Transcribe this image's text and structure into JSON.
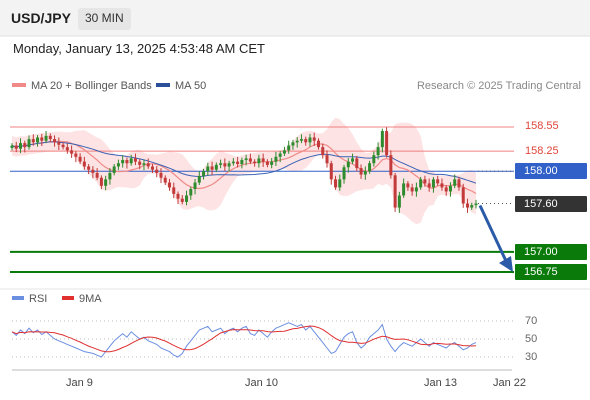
{
  "header": {
    "symbol": "USD/JPY",
    "timeframe": "30 MIN",
    "datetime": "Monday, January 13, 2025 4:53:48 AM CET"
  },
  "legend": {
    "ma20": "MA 20 + Bollinger Bands",
    "ma50": "MA 50",
    "credit": "Research © 2025 Trading Central"
  },
  "rsi_legend": {
    "rsi": "RSI",
    "ma9": "9MA"
  },
  "colors": {
    "ma20": "#f08a88",
    "bands": "#fde3e3",
    "ma50": "#3a62b5",
    "up": "#2e8b2e",
    "down": "#c23a3a",
    "support": "#0a7a0a",
    "resistance": "#f08080",
    "pivot": "#3060c8",
    "arrow": "#2a5aa8",
    "rsi": "#6a8ee0",
    "rsi_ma": "#e03030"
  },
  "levels": [
    {
      "value": "158.55",
      "kind": "resistance"
    },
    {
      "value": "158.25",
      "kind": "resistance"
    },
    {
      "value": "158.00",
      "kind": "pivot"
    },
    {
      "value": "157.60",
      "kind": "last"
    },
    {
      "value": "157.00",
      "kind": "support"
    },
    {
      "value": "156.75",
      "kind": "support"
    }
  ],
  "rsi_levels": [
    "70",
    "50",
    "30"
  ],
  "x_labels": [
    "Jan 9",
    "Jan 10",
    "Jan 13",
    "Jan 22"
  ],
  "chart_data": {
    "type": "candlestick",
    "title": "USD/JPY",
    "timeframe": "30 MIN",
    "ylim": [
      156.6,
      159.0
    ],
    "last_price": 157.6,
    "pivot": 158.0,
    "resistances": [
      158.25,
      158.55
    ],
    "supports": [
      157.0,
      156.75
    ],
    "outlook": "down",
    "close": [
      158.32,
      158.28,
      158.35,
      158.3,
      158.4,
      158.36,
      158.42,
      158.38,
      158.44,
      158.4,
      158.36,
      158.33,
      158.3,
      158.26,
      158.22,
      158.18,
      158.12,
      158.06,
      158.02,
      157.98,
      157.92,
      157.82,
      157.9,
      157.98,
      158.06,
      158.1,
      158.14,
      158.1,
      158.16,
      158.12,
      158.08,
      158.1,
      158.06,
      158.02,
      157.98,
      157.92,
      157.86,
      157.8,
      157.72,
      157.66,
      157.62,
      157.7,
      157.78,
      157.86,
      157.94,
      158.0,
      158.06,
      158.02,
      158.08,
      158.1,
      158.06,
      158.1,
      158.12,
      158.09,
      158.14,
      158.16,
      158.12,
      158.1,
      158.16,
      158.12,
      158.08,
      158.12,
      158.18,
      158.22,
      158.26,
      158.32,
      158.36,
      158.38,
      158.4,
      158.36,
      158.42,
      158.38,
      158.3,
      158.2,
      158.1,
      157.9,
      157.8,
      157.9,
      158.05,
      158.12,
      158.16,
      158.04,
      157.96,
      158.0,
      158.1,
      158.2,
      158.3,
      158.5,
      158.2,
      157.95,
      157.55,
      157.7,
      157.85,
      157.8,
      157.75,
      157.8,
      157.9,
      157.85,
      157.8,
      157.9,
      157.85,
      157.8,
      157.75,
      157.82,
      157.9,
      157.8,
      157.6,
      157.55,
      157.58,
      157.6
    ],
    "rsi": {
      "ylim": [
        20,
        80
      ],
      "levels": [
        70,
        50,
        30
      ],
      "values": [
        58,
        54,
        60,
        56,
        62,
        57,
        60,
        55,
        58,
        54,
        50,
        48,
        46,
        44,
        42,
        40,
        38,
        36,
        35,
        34,
        32,
        30,
        36,
        42,
        48,
        52,
        56,
        52,
        58,
        54,
        50,
        52,
        48,
        46,
        44,
        40,
        38,
        36,
        32,
        30,
        34,
        42,
        48,
        54,
        60,
        62,
        64,
        58,
        60,
        62,
        56,
        60,
        62,
        58,
        62,
        64,
        56,
        54,
        60,
        56,
        52,
        58,
        62,
        64,
        66,
        68,
        66,
        64,
        66,
        60,
        64,
        58,
        52,
        46,
        40,
        34,
        36,
        44,
        52,
        56,
        58,
        46,
        40,
        44,
        52,
        56,
        60,
        66,
        50,
        42,
        36,
        42,
        46,
        44,
        42,
        46,
        50,
        46,
        42,
        46,
        44,
        42,
        40,
        44,
        46,
        42,
        38,
        40,
        44,
        46
      ]
    }
  }
}
